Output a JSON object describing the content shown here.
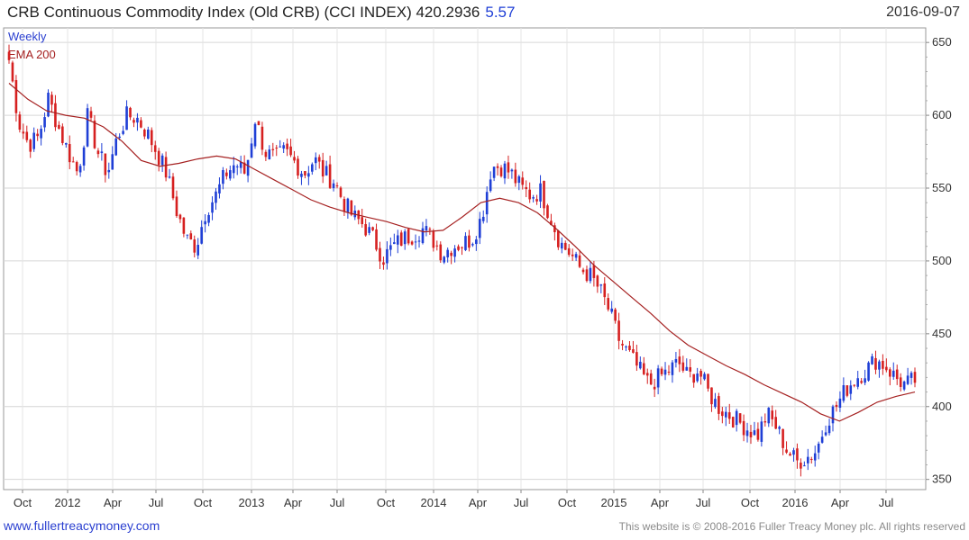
{
  "header": {
    "title": "CRB Continuous Commodity Index (Old CRB) (CCI INDEX) 420.2936",
    "change": "5.57",
    "date": "2016-09-07"
  },
  "legend": {
    "period": "Weekly",
    "ema": "EMA 200"
  },
  "footer": {
    "site": "www.fullertreacymoney.com",
    "copyright": "This website is © 2008-2016 Fuller Treacy Money plc. All rights reserved"
  },
  "colors": {
    "up": "#1f3fd6",
    "down": "#d62020",
    "ema": "#a52020",
    "grid": "#d6d6d6",
    "legend_period": "#2a3fd0",
    "legend_ema": "#a52020"
  },
  "chart_data": {
    "type": "candlestick",
    "title": "CRB Continuous Commodity Index (Old CRB) (CCI INDEX)",
    "x_ticks": [
      "Oct",
      "2012",
      "Apr",
      "Jul",
      "Oct",
      "2013",
      "Apr",
      "Jul",
      "Oct",
      "2014",
      "Apr",
      "Jul",
      "Oct",
      "2015",
      "Apr",
      "Jul",
      "Oct",
      "2016",
      "Apr",
      "Jul"
    ],
    "y_ticks": [
      350,
      400,
      450,
      500,
      550,
      600,
      650
    ],
    "ylim": [
      343,
      660
    ],
    "grid": true,
    "series": [
      {
        "name": "Weekly",
        "type": "candlestick",
        "values": [
          638,
          595,
          580,
          585,
          612,
          592,
          575,
          560,
          600,
          575,
          560,
          585,
          600,
          598,
          588,
          575,
          560,
          535,
          515,
          510,
          535,
          545,
          560,
          567,
          560,
          598,
          575,
          570,
          575,
          568,
          560,
          570,
          560,
          555,
          540,
          530,
          525,
          515,
          502,
          510,
          515,
          518,
          522,
          515,
          505,
          510,
          512,
          515,
          530,
          565,
          565,
          560,
          550,
          545,
          548,
          530,
          512,
          505,
          495,
          490,
          480,
          465,
          445,
          435,
          425,
          415,
          420,
          425,
          430,
          420,
          425,
          410,
          400,
          395,
          390,
          385,
          380,
          395,
          385,
          370,
          362,
          365,
          370,
          390,
          400,
          412,
          420,
          425,
          432,
          428,
          420,
          415,
          418
        ]
      },
      {
        "name": "EMA 200",
        "type": "line",
        "values": [
          622,
          611,
          603,
          600,
          598,
          592,
          582,
          569,
          565,
          567,
          570,
          572,
          570,
          563,
          556,
          549,
          542,
          537,
          533,
          530,
          527,
          523,
          520,
          521,
          530,
          540,
          543,
          540,
          533,
          522,
          510,
          497,
          486,
          475,
          464,
          452,
          442,
          435,
          428,
          422,
          415,
          409,
          403,
          395,
          390,
          396,
          403,
          407,
          410
        ]
      }
    ]
  }
}
